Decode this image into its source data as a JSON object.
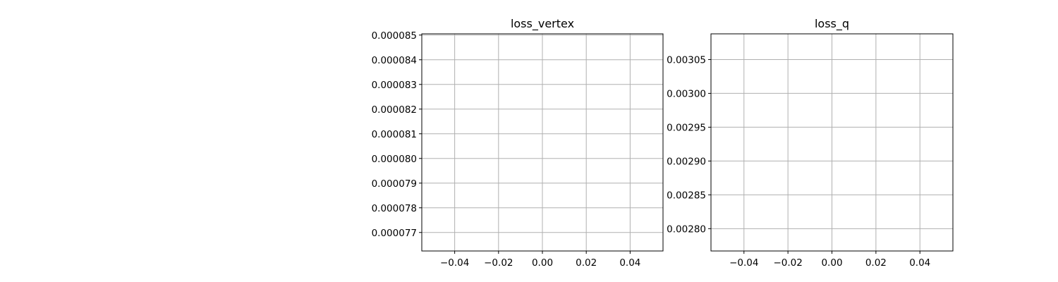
{
  "chart_data": [
    {
      "type": "line",
      "title": "loss_vertex",
      "xlabel": "",
      "ylabel": "",
      "xlim": [
        -0.055,
        0.055
      ],
      "ylim": [
        7.625e-05,
        8.505e-05
      ],
      "x_ticks": [
        -0.04,
        -0.02,
        0.0,
        0.02,
        0.04
      ],
      "x_tick_labels": [
        "−0.04",
        "−0.02",
        "0.00",
        "0.02",
        "0.04"
      ],
      "y_ticks": [
        7.7e-05,
        7.8e-05,
        7.9e-05,
        8e-05,
        8.1e-05,
        8.2e-05,
        8.3e-05,
        8.4e-05,
        8.5e-05
      ],
      "y_tick_labels": [
        "0.000077",
        "0.000078",
        "0.000079",
        "0.000080",
        "0.000081",
        "0.000082",
        "0.000083",
        "0.000084",
        "0.000085"
      ],
      "grid": true,
      "series": [
        {
          "x": [],
          "y": []
        }
      ]
    },
    {
      "type": "line",
      "title": "loss_q",
      "xlabel": "",
      "ylabel": "",
      "xlim": [
        -0.055,
        0.055
      ],
      "ylim": [
        0.002767,
        0.003088
      ],
      "x_ticks": [
        -0.04,
        -0.02,
        0.0,
        0.02,
        0.04
      ],
      "x_tick_labels": [
        "−0.04",
        "−0.02",
        "0.00",
        "0.02",
        "0.04"
      ],
      "y_ticks": [
        0.0028,
        0.00285,
        0.0029,
        0.00295,
        0.003,
        0.00305
      ],
      "y_tick_labels": [
        "0.00280",
        "0.00285",
        "0.00290",
        "0.00295",
        "0.00300",
        "0.00305"
      ],
      "grid": true,
      "series": [
        {
          "x": [],
          "y": []
        }
      ]
    }
  ],
  "colors": {
    "grid": "#b0b0b0",
    "axes": "#000000",
    "background": "#ffffff"
  }
}
